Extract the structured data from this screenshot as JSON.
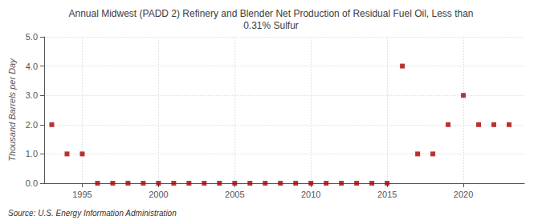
{
  "chart_data": {
    "type": "scatter",
    "title": "Annual Midwest (PADD 2) Refinery and Blender Net Production of Residual Fuel Oil, Less than\n0.31% Sulfur",
    "ylabel": "Thousand Barrels per Day",
    "annotations": [
      "Source: U.S. Energy Information Administration"
    ],
    "x": [
      1993,
      1994,
      1995,
      1996,
      1997,
      1998,
      1999,
      2000,
      2001,
      2002,
      2003,
      2004,
      2005,
      2006,
      2007,
      2008,
      2009,
      2010,
      2011,
      2012,
      2013,
      2014,
      2015,
      2016,
      2017,
      2018,
      2019,
      2020,
      2021,
      2022,
      2023
    ],
    "values": [
      2.0,
      1.0,
      1.0,
      0.0,
      0.0,
      0.0,
      0.0,
      0.0,
      0.0,
      0.0,
      0.0,
      0.0,
      0.0,
      0.0,
      0.0,
      0.0,
      0.0,
      0.0,
      0.0,
      0.0,
      0.0,
      0.0,
      0.0,
      4.0,
      1.0,
      1.0,
      2.0,
      3.0,
      2.0,
      2.0,
      2.0
    ],
    "color": "#aa0000",
    "marker": "square",
    "xlim": [
      1992.5,
      2024
    ],
    "xticks": [
      1995,
      2000,
      2005,
      2010,
      2015,
      2020
    ],
    "ylim": [
      0.0,
      5.0
    ],
    "yticks": [
      {
        "value": 0.0,
        "label": "0.0"
      },
      {
        "value": 1.0,
        "label": "1.0"
      },
      {
        "value": 2.0,
        "label": "2.0"
      },
      {
        "value": 3.0,
        "label": "3.0"
      },
      {
        "value": 4.0,
        "label": "4.0"
      },
      {
        "value": 5.0,
        "label": "5.0"
      }
    ],
    "grid": true
  }
}
